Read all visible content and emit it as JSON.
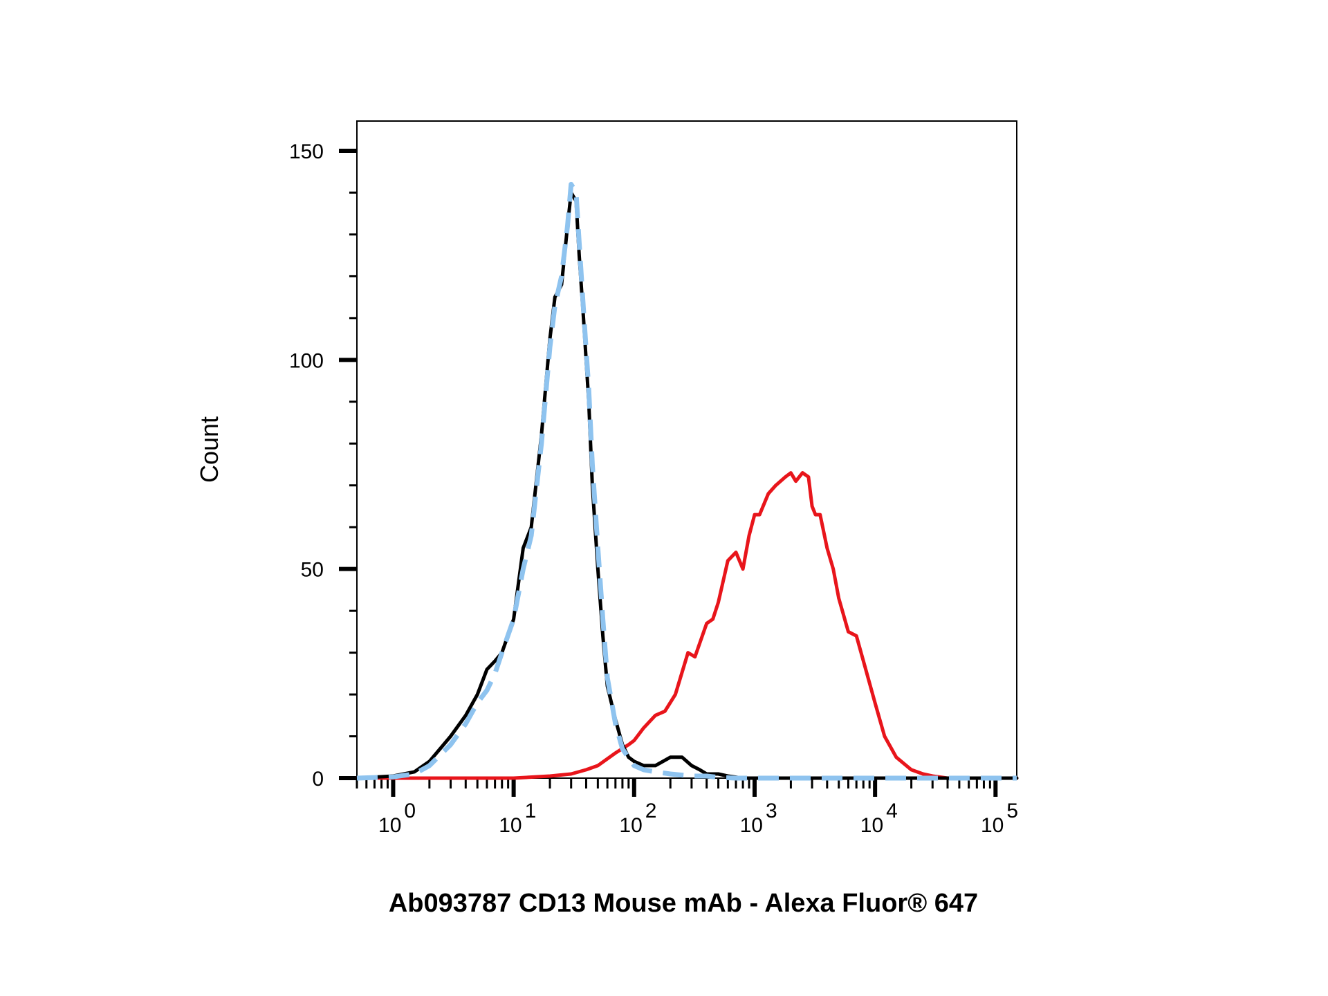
{
  "chart_data": {
    "type": "line",
    "title": "",
    "xlabel": "Ab093787 CD13 Mouse mAb - Alexa Fluor® 647",
    "ylabel": "Count",
    "x_scale": "log",
    "xlim": [
      0.5,
      150000
    ],
    "ylim": [
      0,
      150
    ],
    "y_ticks": [
      {
        "value": 0,
        "label": "0"
      },
      {
        "value": 50,
        "label": "50"
      },
      {
        "value": 100,
        "label": "100"
      },
      {
        "value": 150,
        "label": "150"
      }
    ],
    "x_ticks": [
      {
        "value": 1,
        "base": "10",
        "exp": "0"
      },
      {
        "value": 10,
        "base": "10",
        "exp": "1"
      },
      {
        "value": 100,
        "base": "10",
        "exp": "2"
      },
      {
        "value": 1000,
        "base": "10",
        "exp": "3"
      },
      {
        "value": 10000,
        "base": "10",
        "exp": "4"
      },
      {
        "value": 100000,
        "base": "10",
        "exp": "5"
      }
    ],
    "grid": false,
    "legend": "none",
    "series": [
      {
        "color": "#000000",
        "style": "solid",
        "x": [
          0.5,
          1,
          1.5,
          2,
          3,
          4,
          5,
          6,
          7,
          8,
          10,
          12,
          14,
          17,
          20,
          22,
          25,
          28,
          30,
          33,
          35,
          38,
          42,
          45,
          50,
          55,
          60,
          70,
          80,
          90,
          100,
          120,
          150,
          200,
          250,
          300,
          350,
          400,
          500,
          600,
          800,
          1000,
          1500,
          100000,
          150000
        ],
        "y": [
          0,
          0.5,
          1.5,
          4,
          10,
          15,
          20,
          26,
          28,
          30,
          38,
          55,
          60,
          82,
          105,
          115,
          118,
          132,
          140,
          138,
          125,
          110,
          90,
          70,
          50,
          34,
          22,
          14,
          8,
          5,
          4,
          3,
          3,
          5,
          5,
          3,
          2,
          1,
          1,
          0.5,
          0,
          0,
          0,
          0,
          0
        ]
      },
      {
        "color": "#8ec3ef",
        "style": "dashed",
        "x": [
          0.5,
          1,
          1.5,
          2,
          3,
          4,
          5,
          6,
          7,
          8,
          10,
          12,
          14,
          17,
          20,
          22,
          25,
          28,
          30,
          33,
          35,
          38,
          42,
          45,
          50,
          55,
          60,
          70,
          80,
          100,
          120,
          150,
          200,
          300,
          400,
          500,
          700,
          1000,
          150000
        ],
        "y": [
          0,
          0.3,
          1,
          3,
          8,
          13,
          18,
          21,
          25,
          30,
          38,
          50,
          58,
          80,
          103,
          113,
          120,
          132,
          142,
          140,
          128,
          112,
          93,
          75,
          55,
          38,
          24,
          13,
          7,
          3,
          2,
          1.5,
          1,
          0.5,
          0.5,
          0.2,
          0,
          0,
          0
        ]
      },
      {
        "color": "#e8151b",
        "style": "solid",
        "x": [
          0.5,
          10,
          20,
          30,
          40,
          50,
          70,
          90,
          100,
          120,
          150,
          180,
          220,
          280,
          320,
          400,
          450,
          500,
          600,
          700,
          800,
          900,
          1000,
          1100,
          1300,
          1500,
          1800,
          2000,
          2200,
          2500,
          2800,
          3000,
          3200,
          3500,
          4000,
          4500,
          5000,
          6000,
          7000,
          8000,
          10000,
          12000,
          15000,
          20000,
          25000,
          30000,
          40000,
          50000,
          150000
        ],
        "y": [
          0,
          0,
          0.5,
          1,
          2,
          3,
          6,
          8,
          9,
          12,
          15,
          16,
          20,
          30,
          29,
          37,
          38,
          42,
          52,
          54,
          50,
          58,
          63,
          63,
          68,
          70,
          72,
          73,
          71,
          73,
          72,
          65,
          63,
          63,
          55,
          50,
          43,
          35,
          34,
          28,
          18,
          10,
          5,
          2,
          1,
          0.5,
          0,
          0,
          0
        ]
      }
    ]
  }
}
